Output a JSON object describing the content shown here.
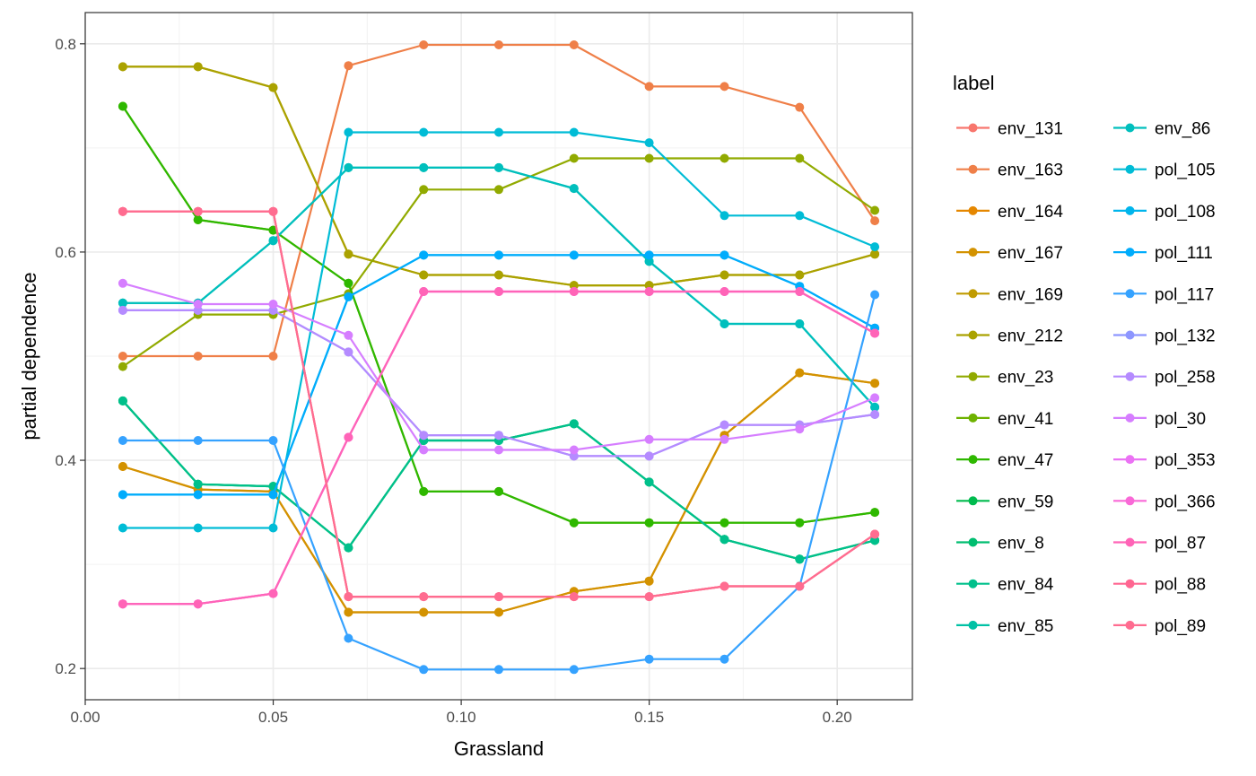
{
  "chart_data": {
    "type": "line",
    "xlabel": "Grassland",
    "ylabel": "partial dependence",
    "xlim": [
      0.0,
      0.22
    ],
    "ylim": [
      0.17,
      0.83
    ],
    "x_ticks": [
      0.0,
      0.05,
      0.1,
      0.15,
      0.2
    ],
    "x_tick_labels": [
      "0.00",
      "0.05",
      "0.10",
      "0.15",
      "0.20"
    ],
    "y_ticks": [
      0.2,
      0.4,
      0.6,
      0.8
    ],
    "y_tick_labels": [
      "0.2",
      "0.4",
      "0.6",
      "0.8"
    ],
    "grid": true,
    "legend_title": "label",
    "legend_position": "right",
    "x": [
      0.01,
      0.03,
      0.05,
      0.07,
      0.09,
      0.11,
      0.13,
      0.15,
      0.17,
      0.19,
      0.21
    ],
    "series": [
      {
        "name": "env_131",
        "color": "#F8766D",
        "values": [
          0.639,
          0.639,
          0.639,
          0.269,
          0.269,
          0.269,
          0.269,
          0.269,
          0.279,
          0.279,
          0.329
        ]
      },
      {
        "name": "env_163",
        "color": "#EF7F48",
        "values": [
          0.5,
          0.5,
          0.5,
          0.779,
          0.799,
          0.799,
          0.799,
          0.759,
          0.759,
          0.739,
          0.63
        ]
      },
      {
        "name": "env_164",
        "color": "#E58700",
        "values": [
          0.394,
          0.372,
          0.37,
          0.254,
          0.254,
          0.254,
          0.274,
          0.284,
          0.424,
          0.484,
          0.474
        ]
      },
      {
        "name": "env_167",
        "color": "#D39200",
        "values": [
          0.394,
          0.372,
          0.37,
          0.254,
          0.254,
          0.254,
          0.274,
          0.284,
          0.424,
          0.484,
          0.474
        ]
      },
      {
        "name": "env_169",
        "color": "#C09B00",
        "values": [
          0.778,
          0.778,
          0.758,
          0.598,
          0.578,
          0.578,
          0.568,
          0.568,
          0.578,
          0.578,
          0.598
        ]
      },
      {
        "name": "env_212",
        "color": "#AAA200",
        "values": [
          0.778,
          0.778,
          0.758,
          0.598,
          0.578,
          0.578,
          0.568,
          0.568,
          0.578,
          0.578,
          0.598
        ]
      },
      {
        "name": "env_23",
        "color": "#91AA00",
        "values": [
          0.49,
          0.54,
          0.54,
          0.56,
          0.66,
          0.66,
          0.69,
          0.69,
          0.69,
          0.69,
          0.64
        ]
      },
      {
        "name": "env_41",
        "color": "#6EB200",
        "values": [
          0.74,
          0.631,
          0.621,
          0.57,
          0.37,
          0.37,
          0.34,
          0.34,
          0.34,
          0.34,
          0.35
        ]
      },
      {
        "name": "env_47",
        "color": "#2EB800",
        "values": [
          0.74,
          0.631,
          0.621,
          0.57,
          0.37,
          0.37,
          0.34,
          0.34,
          0.34,
          0.34,
          0.35
        ]
      },
      {
        "name": "env_59",
        "color": "#00BB4E",
        "values": [
          0.457,
          0.377,
          0.375,
          0.316,
          0.419,
          0.419,
          0.435,
          0.379,
          0.324,
          0.305,
          0.323
        ]
      },
      {
        "name": "env_8",
        "color": "#00BE70",
        "values": [
          0.457,
          0.377,
          0.375,
          0.316,
          0.419,
          0.419,
          0.435,
          0.379,
          0.324,
          0.305,
          0.323
        ]
      },
      {
        "name": "env_84",
        "color": "#00C08B",
        "values": [
          0.457,
          0.377,
          0.375,
          0.316,
          0.419,
          0.419,
          0.435,
          0.379,
          0.324,
          0.305,
          0.323
        ]
      },
      {
        "name": "env_85",
        "color": "#00C1A5",
        "values": [
          0.551,
          0.551,
          0.611,
          0.681,
          0.681,
          0.681,
          0.661,
          0.591,
          0.531,
          0.531,
          0.451
        ]
      },
      {
        "name": "env_86",
        "color": "#00BFBD",
        "values": [
          0.551,
          0.551,
          0.611,
          0.681,
          0.681,
          0.681,
          0.661,
          0.591,
          0.531,
          0.531,
          0.451
        ]
      },
      {
        "name": "pol_105",
        "color": "#00BCD6",
        "values": [
          0.335,
          0.335,
          0.335,
          0.715,
          0.715,
          0.715,
          0.715,
          0.705,
          0.635,
          0.635,
          0.605
        ]
      },
      {
        "name": "pol_108",
        "color": "#00B5EC",
        "values": [
          0.367,
          0.367,
          0.367,
          0.557,
          0.597,
          0.597,
          0.597,
          0.597,
          0.597,
          0.567,
          0.527
        ]
      },
      {
        "name": "pol_111",
        "color": "#00ACFC",
        "values": [
          0.367,
          0.367,
          0.367,
          0.557,
          0.597,
          0.597,
          0.597,
          0.597,
          0.597,
          0.567,
          0.527
        ]
      },
      {
        "name": "pol_117",
        "color": "#35A2FF",
        "values": [
          0.419,
          0.419,
          0.419,
          0.229,
          0.199,
          0.199,
          0.199,
          0.209,
          0.209,
          0.279,
          0.559
        ]
      },
      {
        "name": "pol_132",
        "color": "#8D96FF",
        "values": [
          0.544,
          0.544,
          0.544,
          0.504,
          0.424,
          0.424,
          0.404,
          0.404,
          0.434,
          0.434,
          0.444
        ]
      },
      {
        "name": "pol_258",
        "color": "#B58BFF",
        "values": [
          0.544,
          0.544,
          0.544,
          0.504,
          0.424,
          0.424,
          0.404,
          0.404,
          0.434,
          0.434,
          0.444
        ]
      },
      {
        "name": "pol_30",
        "color": "#D67EFF",
        "values": [
          0.57,
          0.55,
          0.55,
          0.52,
          0.41,
          0.41,
          0.41,
          0.42,
          0.42,
          0.43,
          0.46
        ]
      },
      {
        "name": "pol_353",
        "color": "#EB72F4",
        "values": [
          0.262,
          0.262,
          0.272,
          0.422,
          0.562,
          0.562,
          0.562,
          0.562,
          0.562,
          0.562,
          0.522
        ]
      },
      {
        "name": "pol_366",
        "color": "#F969D7",
        "values": [
          0.262,
          0.262,
          0.272,
          0.422,
          0.562,
          0.562,
          0.562,
          0.562,
          0.562,
          0.562,
          0.522
        ]
      },
      {
        "name": "pol_87",
        "color": "#FF64B7",
        "values": [
          0.262,
          0.262,
          0.272,
          0.422,
          0.562,
          0.562,
          0.562,
          0.562,
          0.562,
          0.562,
          0.522
        ]
      },
      {
        "name": "pol_88",
        "color": "#FF6691",
        "values": [
          0.639,
          0.639,
          0.639,
          0.269,
          0.269,
          0.269,
          0.269,
          0.269,
          0.279,
          0.279,
          0.329
        ]
      },
      {
        "name": "pol_89",
        "color": "#FF6C90",
        "values": [
          0.639,
          0.639,
          0.639,
          0.269,
          0.269,
          0.269,
          0.269,
          0.269,
          0.279,
          0.279,
          0.329
        ]
      }
    ]
  }
}
